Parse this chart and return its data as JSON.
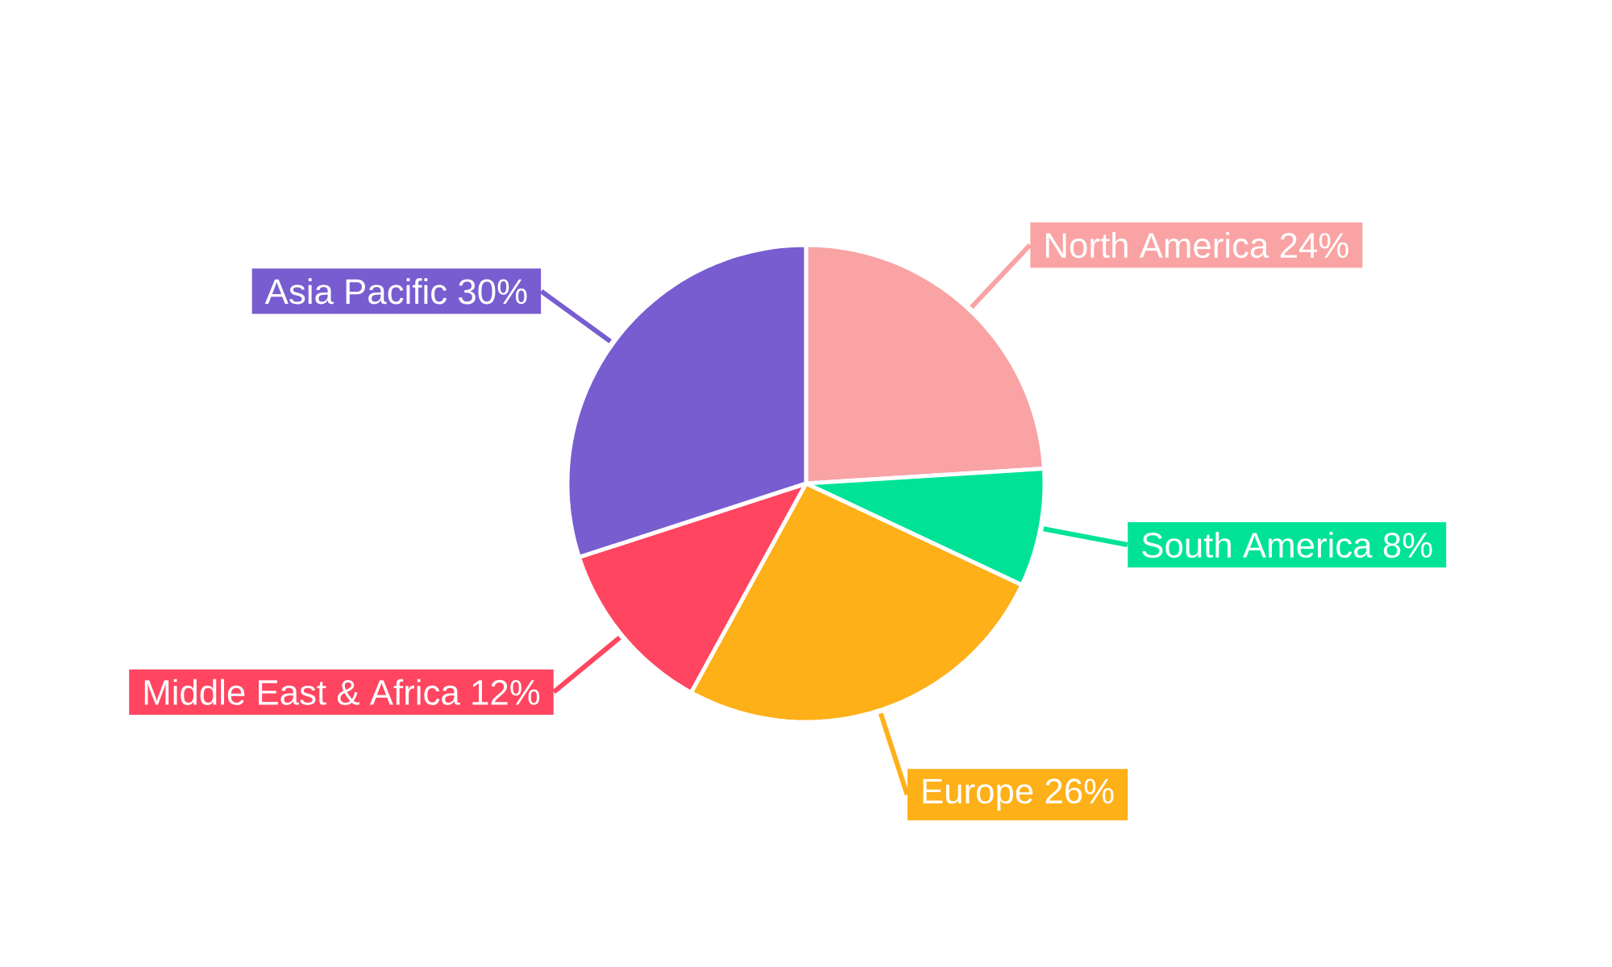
{
  "chart_data": {
    "type": "pie",
    "categories": [
      "North America",
      "South America",
      "Europe",
      "Middle East & Africa",
      "Asia Pacific"
    ],
    "values": [
      24,
      8,
      26,
      12,
      30
    ],
    "value_labels": [
      "24%",
      "8%",
      "26%",
      "12%",
      "30%"
    ],
    "colors": [
      "#f9a3a4",
      "#00e396",
      "#feb019",
      "#ff4560",
      "#775dd0"
    ]
  }
}
